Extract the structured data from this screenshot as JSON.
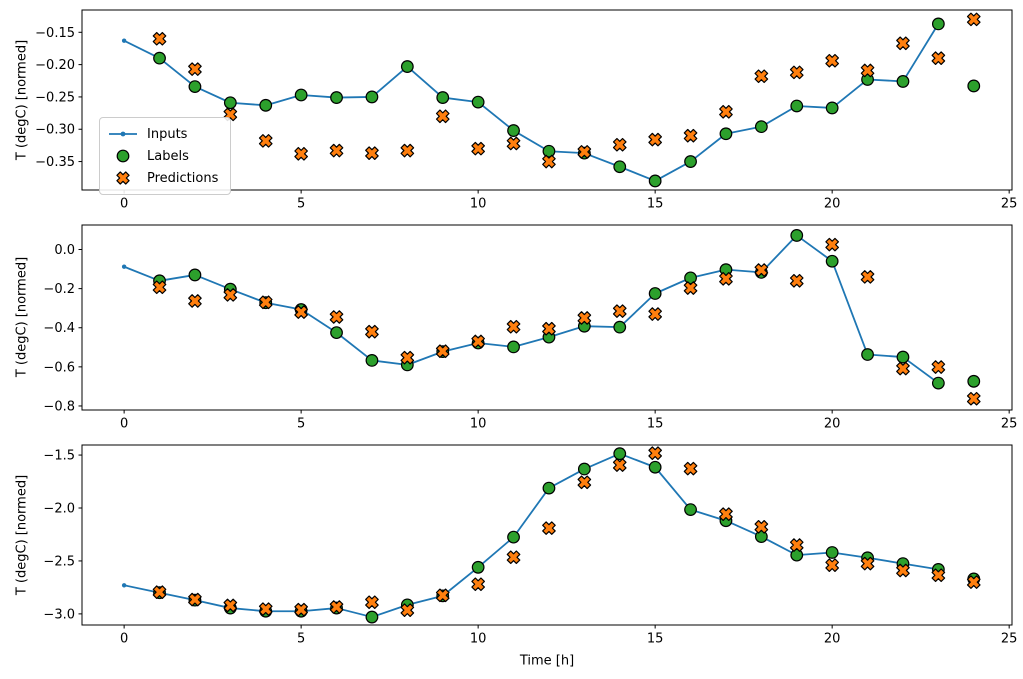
{
  "xlabel": "Time [h]",
  "colors": {
    "inputs_line": "#1f77b4",
    "labels_marker": "#2ca02c",
    "predictions_marker": "#ff7f0e",
    "marker_edge": "#000000",
    "spine": "#000000",
    "legend_border": "#cccccc"
  },
  "chart_data": [
    {
      "type": "line",
      "title": "",
      "ylabel": "T (degC) [normed]",
      "xlabel": "",
      "xlim": [
        -1.19,
        25.08
      ],
      "ylim": [
        -0.394,
        -0.1155
      ],
      "xticks": [
        0,
        5,
        10,
        15,
        20,
        25
      ],
      "xtick_labels": [
        "0",
        "5",
        "10",
        "15",
        "20",
        "25"
      ],
      "yticks": [
        -0.15,
        -0.2,
        -0.25,
        -0.3,
        -0.35
      ],
      "ytick_labels": [
        "−0.15",
        "−0.20",
        "−0.25",
        "−0.30",
        "−0.35"
      ],
      "grid": false,
      "legend_position": "center left",
      "series": [
        {
          "name": "Inputs",
          "plot": "line",
          "marker": "point",
          "color": "#1f77b4",
          "x": [
            0,
            1,
            2,
            3,
            4,
            5,
            6,
            7,
            8,
            9,
            10,
            11,
            12,
            13,
            14,
            15,
            16,
            17,
            18,
            19,
            20,
            21,
            22,
            23
          ],
          "values": [
            -0.163,
            -0.19,
            -0.234,
            -0.259,
            -0.263,
            -0.247,
            -0.251,
            -0.25,
            -0.203,
            -0.251,
            -0.258,
            -0.302,
            -0.334,
            -0.337,
            -0.358,
            -0.38,
            -0.35,
            -0.307,
            -0.296,
            -0.264,
            -0.267,
            -0.223,
            -0.226,
            -0.137
          ]
        },
        {
          "name": "Labels",
          "plot": "scatter",
          "marker": "circle",
          "color": "#2ca02c",
          "edge_color": "#000000",
          "x": [
            1,
            2,
            3,
            4,
            5,
            6,
            7,
            8,
            9,
            10,
            11,
            12,
            13,
            14,
            15,
            16,
            17,
            18,
            19,
            20,
            21,
            22,
            23,
            24
          ],
          "values": [
            -0.19,
            -0.234,
            -0.259,
            -0.263,
            -0.247,
            -0.251,
            -0.25,
            -0.203,
            -0.251,
            -0.258,
            -0.302,
            -0.334,
            -0.337,
            -0.358,
            -0.38,
            -0.35,
            -0.307,
            -0.296,
            -0.264,
            -0.267,
            -0.223,
            -0.226,
            -0.137,
            -0.233
          ]
        },
        {
          "name": "Predictions",
          "plot": "scatter",
          "marker": "X",
          "color": "#ff7f0e",
          "edge_color": "#000000",
          "x": [
            1,
            2,
            3,
            4,
            5,
            6,
            7,
            8,
            9,
            10,
            11,
            12,
            13,
            14,
            15,
            16,
            17,
            18,
            19,
            20,
            21,
            22,
            23,
            24
          ],
          "values": [
            -0.16,
            -0.207,
            -0.277,
            -0.318,
            -0.338,
            -0.333,
            -0.337,
            -0.333,
            -0.28,
            -0.33,
            -0.322,
            -0.35,
            -0.335,
            -0.324,
            -0.316,
            -0.31,
            -0.273,
            -0.218,
            -0.212,
            -0.194,
            -0.209,
            -0.167,
            -0.19,
            -0.13
          ]
        }
      ]
    },
    {
      "type": "line",
      "title": "",
      "ylabel": "T (degC) [normed]",
      "xlabel": "",
      "xlim": [
        -1.19,
        25.08
      ],
      "ylim": [
        -0.8206,
        0.1253
      ],
      "xticks": [
        0,
        5,
        10,
        15,
        20,
        25
      ],
      "xtick_labels": [
        "0",
        "5",
        "10",
        "15",
        "20",
        "25"
      ],
      "yticks": [
        0.0,
        -0.2,
        -0.4,
        -0.6,
        -0.8
      ],
      "ytick_labels": [
        "0.0",
        "−0.2",
        "−0.4",
        "−0.6",
        "−0.8"
      ],
      "grid": false,
      "legend_position": "none",
      "series": [
        {
          "name": "Inputs",
          "plot": "line",
          "marker": "point",
          "color": "#1f77b4",
          "x": [
            0,
            1,
            2,
            3,
            4,
            5,
            6,
            7,
            8,
            9,
            10,
            11,
            12,
            13,
            14,
            15,
            16,
            17,
            18,
            19,
            20,
            21,
            22,
            23
          ],
          "values": [
            -0.088,
            -0.16,
            -0.13,
            -0.203,
            -0.272,
            -0.307,
            -0.425,
            -0.567,
            -0.59,
            -0.522,
            -0.478,
            -0.498,
            -0.448,
            -0.392,
            -0.397,
            -0.225,
            -0.145,
            -0.103,
            -0.117,
            0.072,
            -0.06,
            -0.537,
            -0.55,
            -0.683
          ]
        },
        {
          "name": "Labels",
          "plot": "scatter",
          "marker": "circle",
          "color": "#2ca02c",
          "edge_color": "#000000",
          "x": [
            1,
            2,
            3,
            4,
            5,
            6,
            7,
            8,
            9,
            10,
            11,
            12,
            13,
            14,
            15,
            16,
            17,
            18,
            19,
            20,
            21,
            22,
            23,
            24
          ],
          "values": [
            -0.16,
            -0.13,
            -0.203,
            -0.272,
            -0.307,
            -0.425,
            -0.567,
            -0.59,
            -0.522,
            -0.478,
            -0.498,
            -0.448,
            -0.392,
            -0.397,
            -0.225,
            -0.145,
            -0.103,
            -0.117,
            0.072,
            -0.06,
            -0.537,
            -0.55,
            -0.683,
            -0.674
          ]
        },
        {
          "name": "Predictions",
          "plot": "scatter",
          "marker": "X",
          "color": "#ff7f0e",
          "edge_color": "#000000",
          "x": [
            1,
            2,
            3,
            4,
            5,
            6,
            7,
            8,
            9,
            10,
            11,
            12,
            13,
            14,
            15,
            16,
            17,
            18,
            19,
            20,
            21,
            22,
            23,
            24
          ],
          "values": [
            -0.193,
            -0.263,
            -0.232,
            -0.27,
            -0.32,
            -0.345,
            -0.42,
            -0.553,
            -0.52,
            -0.47,
            -0.395,
            -0.405,
            -0.35,
            -0.315,
            -0.33,
            -0.197,
            -0.15,
            -0.105,
            -0.16,
            0.025,
            -0.14,
            -0.609,
            -0.601,
            -0.763
          ]
        }
      ]
    },
    {
      "type": "line",
      "title": "",
      "ylabel": "T (degC) [normed]",
      "xlabel": "Time [h]",
      "xlim": [
        -1.19,
        25.08
      ],
      "ylim": [
        -3.105,
        -1.405
      ],
      "xticks": [
        0,
        5,
        10,
        15,
        20,
        25
      ],
      "xtick_labels": [
        "0",
        "5",
        "10",
        "15",
        "20",
        "25"
      ],
      "yticks": [
        -1.5,
        -2.0,
        -2.5,
        -3.0
      ],
      "ytick_labels": [
        "−1.5",
        "−2.0",
        "−2.5",
        "−3.0"
      ],
      "grid": false,
      "legend_position": "none",
      "series": [
        {
          "name": "Inputs",
          "plot": "line",
          "marker": "point",
          "color": "#1f77b4",
          "x": [
            0,
            1,
            2,
            3,
            4,
            5,
            6,
            7,
            8,
            9,
            10,
            11,
            12,
            13,
            14,
            15,
            16,
            17,
            18,
            19,
            20,
            21,
            22,
            23
          ],
          "values": [
            -2.73,
            -2.8,
            -2.87,
            -2.945,
            -2.975,
            -2.975,
            -2.945,
            -3.03,
            -2.915,
            -2.83,
            -2.56,
            -2.275,
            -1.812,
            -1.632,
            -1.487,
            -1.615,
            -2.015,
            -2.12,
            -2.27,
            -2.445,
            -2.42,
            -2.47,
            -2.525,
            -2.58
          ]
        },
        {
          "name": "Labels",
          "plot": "scatter",
          "marker": "circle",
          "color": "#2ca02c",
          "edge_color": "#000000",
          "x": [
            1,
            2,
            3,
            4,
            5,
            6,
            7,
            8,
            9,
            10,
            11,
            12,
            13,
            14,
            15,
            16,
            17,
            18,
            19,
            20,
            21,
            22,
            23,
            24
          ],
          "values": [
            -2.8,
            -2.87,
            -2.945,
            -2.975,
            -2.975,
            -2.945,
            -3.03,
            -2.915,
            -2.83,
            -2.56,
            -2.275,
            -1.812,
            -1.632,
            -1.487,
            -1.615,
            -2.015,
            -2.12,
            -2.27,
            -2.445,
            -2.42,
            -2.47,
            -2.525,
            -2.58,
            -2.67
          ]
        },
        {
          "name": "Predictions",
          "plot": "scatter",
          "marker": "X",
          "color": "#ff7f0e",
          "edge_color": "#000000",
          "x": [
            1,
            2,
            3,
            4,
            5,
            6,
            7,
            8,
            9,
            10,
            11,
            12,
            13,
            14,
            15,
            16,
            17,
            18,
            19,
            20,
            21,
            22,
            23,
            24
          ],
          "values": [
            -2.795,
            -2.865,
            -2.92,
            -2.955,
            -2.96,
            -2.935,
            -2.89,
            -2.965,
            -2.825,
            -2.72,
            -2.465,
            -2.19,
            -1.757,
            -1.595,
            -1.482,
            -1.628,
            -2.058,
            -2.178,
            -2.35,
            -2.54,
            -2.525,
            -2.59,
            -2.635,
            -2.7
          ]
        }
      ]
    }
  ]
}
